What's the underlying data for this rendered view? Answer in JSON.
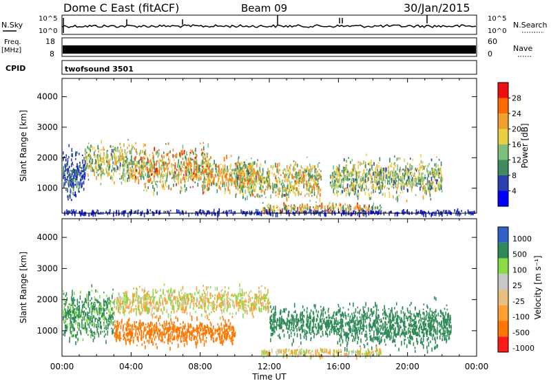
{
  "header": {
    "station_title": "Dome C East (fitACF)",
    "beam_label": "Beam 09",
    "date_label": "30/Jan/2015"
  },
  "aux": {
    "nsky_label": "N.Sky",
    "nsearch_label": "N.Search",
    "freq_label_1": "Freq.",
    "freq_label_2": "[MHz]",
    "nave_label": "Nave",
    "cpid_label": "CPID",
    "cpid_value": "twofsound 3501",
    "noise_ticks": [
      "10^5",
      "10^0"
    ],
    "freq_ticks": [
      "18",
      "8"
    ],
    "nave_ticks": [
      "60",
      "0"
    ]
  },
  "colors": {
    "power_scale": [
      "#0000ff",
      "#2b3fb0",
      "#3f8a5f",
      "#7fc07f",
      "#e8d040",
      "#f0a030",
      "#ff6a00",
      "#ee1010"
    ],
    "velocity_scale": [
      "#ff1a1a",
      "#ff7700",
      "#ffa030",
      "#e8c080",
      "#c8c8c8",
      "#88dd44",
      "#2e8b57",
      "#3060c8"
    ]
  },
  "chart_data": [
    {
      "type": "heatmap",
      "title": "Power",
      "ylabel": "Slant Range [km]",
      "xlabel": "Time UT",
      "xlim": [
        0,
        24
      ],
      "ylim": [
        180,
        4600
      ],
      "x_tick_labels": [
        "00:00",
        "04:00",
        "08:00",
        "12:00",
        "16:00",
        "20:00",
        "00:00"
      ],
      "y_tick_labels": [
        "1000",
        "2000",
        "3000",
        "4000"
      ],
      "colorbar": {
        "label": "Power [dB]",
        "tick_labels": [
          "4",
          "8",
          "12",
          "16",
          "20",
          "24",
          "28"
        ],
        "range": [
          0,
          32
        ]
      },
      "scatter_bands": [
        {
          "t0": 0.0,
          "t1": 1.3,
          "range_center": 1500,
          "range_width": 900,
          "peak_db": 10
        },
        {
          "t0": 1.3,
          "t1": 4.0,
          "range_center": 1900,
          "range_width": 700,
          "peak_db": 24
        },
        {
          "t0": 4.0,
          "t1": 8.5,
          "range_center": 1700,
          "range_width": 800,
          "peak_db": 30
        },
        {
          "t0": 8.0,
          "t1": 11.0,
          "range_center": 1500,
          "range_width": 600,
          "peak_db": 28
        },
        {
          "t0": 10.0,
          "t1": 15.0,
          "range_center": 1300,
          "range_width": 700,
          "peak_db": 26
        },
        {
          "t0": 11.5,
          "t1": 18.5,
          "range_center": 380,
          "range_width": 180,
          "peak_db": 30
        },
        {
          "t0": 15.5,
          "t1": 22.0,
          "range_center": 1400,
          "range_width": 700,
          "peak_db": 22
        },
        {
          "t0": 0.0,
          "t1": 24.0,
          "range_center": 240,
          "range_width": 100,
          "peak_db": 8
        }
      ]
    },
    {
      "type": "heatmap",
      "title": "Velocity",
      "ylabel": "Slant Range [km]",
      "xlabel": "Time UT",
      "xlim": [
        0,
        24
      ],
      "ylim": [
        180,
        4600
      ],
      "x_tick_labels": [
        "00:00",
        "04:00",
        "08:00",
        "12:00",
        "16:00",
        "20:00",
        "00:00"
      ],
      "y_tick_labels": [
        "1000",
        "2000",
        "3000",
        "4000"
      ],
      "colorbar": {
        "label": "Velocity [m s⁻¹]",
        "tick_labels": [
          "-1000",
          "-500",
          "-100",
          "-25",
          "25",
          "100",
          "500",
          "1000"
        ]
      },
      "scatter_bands": [
        {
          "t0": 0.0,
          "t1": 3.0,
          "range_center": 1500,
          "range_width": 900,
          "velocity_ms": 150
        },
        {
          "t0": 3.0,
          "t1": 12.0,
          "range_center": 2000,
          "range_width": 500,
          "velocity_ms": 0
        },
        {
          "t0": 3.0,
          "t1": 10.0,
          "range_center": 1000,
          "range_width": 500,
          "velocity_ms": -300
        },
        {
          "t0": 12.0,
          "t1": 16.0,
          "range_center": 1300,
          "range_width": 600,
          "velocity_ms": 200
        },
        {
          "t0": 16.0,
          "t1": 22.5,
          "range_center": 1200,
          "range_width": 800,
          "velocity_ms": 300
        },
        {
          "t0": 11.5,
          "t1": 18.5,
          "range_center": 350,
          "range_width": 150,
          "velocity_ms": 0
        }
      ]
    }
  ]
}
